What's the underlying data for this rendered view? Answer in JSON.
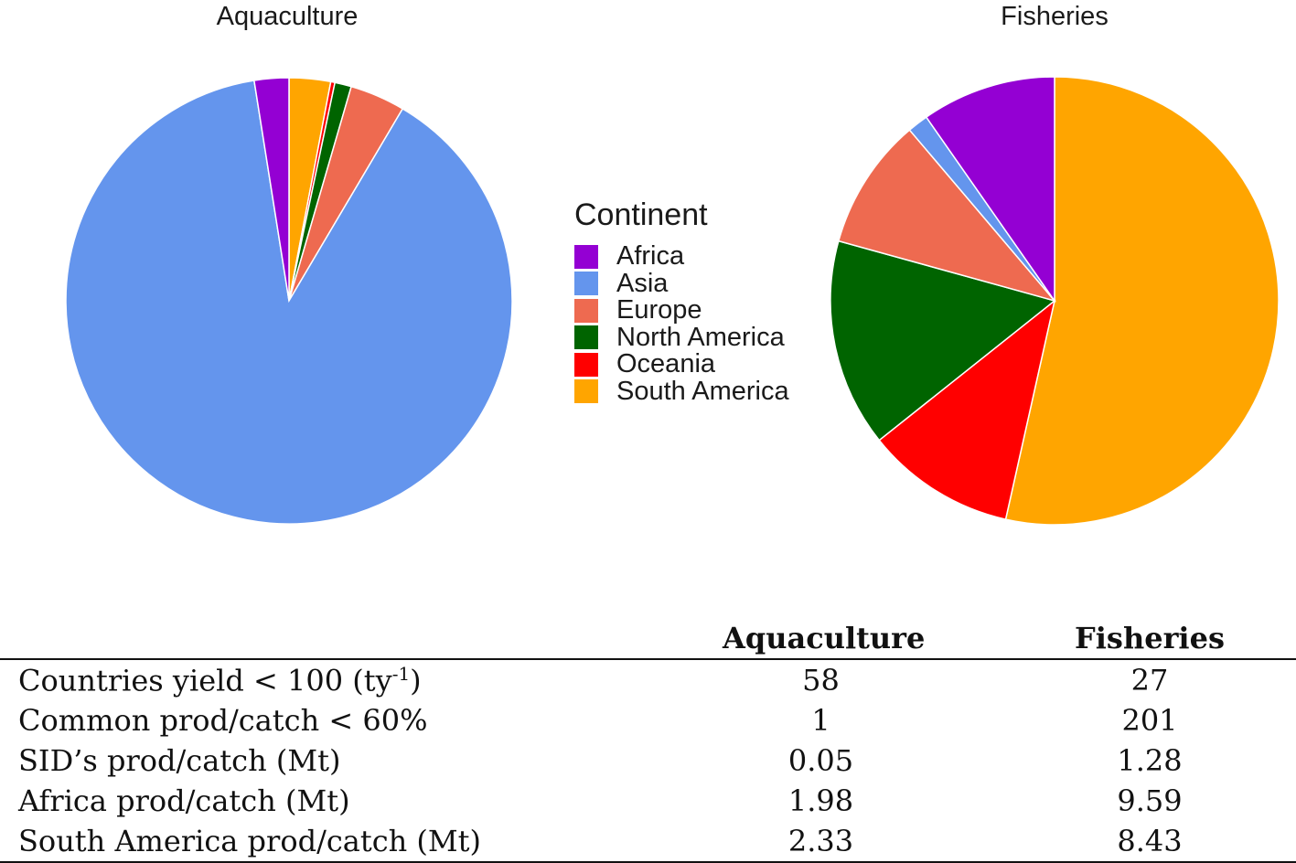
{
  "chart_data": [
    {
      "type": "pie",
      "title": "Aquaculture",
      "categories": [
        "Africa",
        "Asia",
        "Europe",
        "North America",
        "Oceania",
        "South America"
      ],
      "values": [
        2.5,
        89.0,
        4.0,
        1.2,
        0.3,
        3.0
      ],
      "slice_order": [
        "South America",
        "Oceania",
        "North America",
        "Europe",
        "Asia",
        "Africa"
      ]
    },
    {
      "type": "pie",
      "title": "Fisheries",
      "categories": [
        "Africa",
        "Asia",
        "Europe",
        "North America",
        "Oceania",
        "South America"
      ],
      "values": [
        9.7,
        1.5,
        9.5,
        15.0,
        10.8,
        53.5
      ],
      "slice_order": [
        "South America",
        "Oceania",
        "North America",
        "Europe",
        "Asia",
        "Africa"
      ]
    }
  ],
  "legend": {
    "title": "Continent",
    "items": [
      {
        "label": "Africa",
        "color": "#9400d3"
      },
      {
        "label": "Asia",
        "color": "#6495ed"
      },
      {
        "label": "Europe",
        "color": "#ee6a50"
      },
      {
        "label": "North America",
        "color": "#006400"
      },
      {
        "label": "Oceania",
        "color": "#ff0000"
      },
      {
        "label": "South America",
        "color": "#ffa500"
      }
    ]
  },
  "table": {
    "headers": [
      "",
      "Aquaculture",
      "Fisheries"
    ],
    "rows": [
      {
        "label": "Countries yield < 100 (ty",
        "sup": "-1",
        "label_suffix": ")",
        "aqua": "58",
        "fish": "27"
      },
      {
        "label": "Common prod/catch < 60%",
        "aqua": "1",
        "fish": "201"
      },
      {
        "label": "SID’s prod/catch (Mt)",
        "aqua": "0.05",
        "fish": "1.28"
      },
      {
        "label": "Africa prod/catch (Mt)",
        "aqua": "1.98",
        "fish": "9.59"
      },
      {
        "label": "South America prod/catch (Mt)",
        "aqua": "2.33",
        "fish": "8.43"
      }
    ]
  }
}
